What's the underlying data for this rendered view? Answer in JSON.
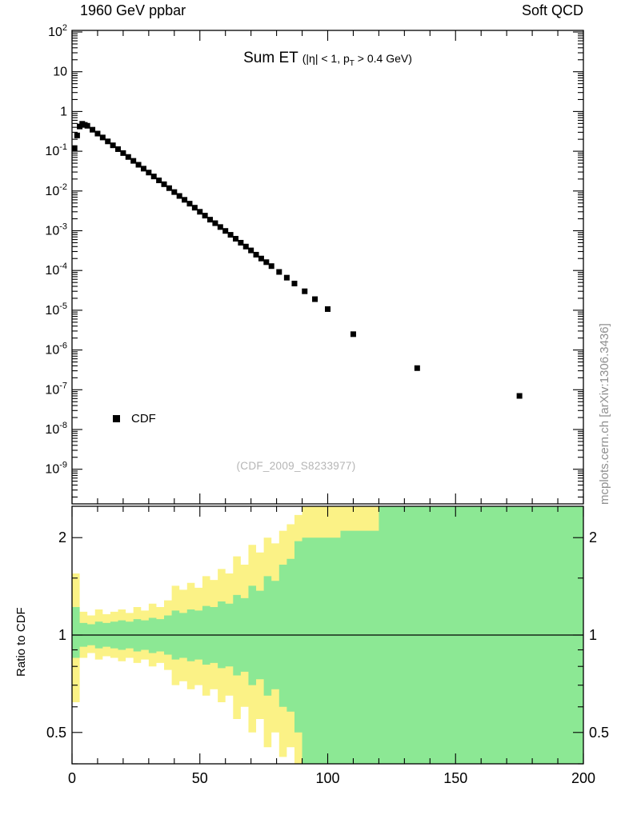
{
  "header": {
    "left_label": "1960 GeV ppbar",
    "right_label": "Soft QCD"
  },
  "plot_title": {
    "main": "Sum ET",
    "cond_pre": "(|η| < 1, p",
    "cond_sub": "T",
    "cond_post": " > 0.4 GeV)"
  },
  "legend": {
    "label": "CDF",
    "marker": "filled-square",
    "marker_color": "#000000"
  },
  "ref_label": "(CDF_2009_S8233977)",
  "side_watermark": "mcplots.cern.ch [arXiv:1306.3436]",
  "ratio": {
    "ylabel": "Ratio to CDF"
  },
  "colors": {
    "band_yellow": "#fbf286",
    "band_green": "#8ce894",
    "marker": "#000000",
    "axis": "#000000",
    "ref_gray": "#b5b5b5",
    "watermark_gray": "#8f8f8f"
  },
  "chart_data": [
    {
      "type": "scatter",
      "title": "Sum ET (|η| < 1, pT > 0.4 GeV)",
      "xlabel": "",
      "ylabel": "",
      "x_range": [
        0,
        200
      ],
      "y_scale": "log",
      "y_range_exp": [
        -9.87,
        2.04
      ],
      "y_tick_exponents": [
        2,
        1,
        0,
        -1,
        -2,
        -3,
        -4,
        -5,
        -6,
        -7,
        -8,
        -9
      ],
      "x_major_ticks": [
        0,
        50,
        100,
        150,
        200
      ],
      "x_minor_step": 10,
      "grid": false,
      "legend_position": "lower-left",
      "series": [
        {
          "name": "CDF",
          "marker": "square",
          "color": "#000000",
          "points": [
            [
              1,
              0.12
            ],
            [
              2,
              0.25
            ],
            [
              3,
              0.42
            ],
            [
              4,
              0.49
            ],
            [
              5,
              0.46
            ],
            [
              6,
              0.437
            ],
            [
              8,
              0.348
            ],
            [
              10,
              0.278
            ],
            [
              12,
              0.222
            ],
            [
              14,
              0.177
            ],
            [
              16,
              0.141
            ],
            [
              18,
              0.113
            ],
            [
              20,
              0.09
            ],
            [
              22,
              0.0718
            ],
            [
              24,
              0.0573
            ],
            [
              26,
              0.0457
            ],
            [
              28,
              0.0365
            ],
            [
              30,
              0.0291
            ],
            [
              32,
              0.0232
            ],
            [
              34,
              0.0185
            ],
            [
              36,
              0.0148
            ],
            [
              38,
              0.0118
            ],
            [
              40,
              0.0094
            ],
            [
              42,
              0.0075
            ],
            [
              44,
              0.006
            ],
            [
              46,
              0.0048
            ],
            [
              48,
              0.0038
            ],
            [
              50,
              0.003
            ],
            [
              52,
              0.0024
            ],
            [
              54,
              0.0019
            ],
            [
              56,
              0.00155
            ],
            [
              58,
              0.00124
            ],
            [
              60,
              0.00099
            ],
            [
              62,
              0.00079
            ],
            [
              64,
              0.00063
            ],
            [
              66,
              0.0005
            ],
            [
              68,
              0.0004
            ],
            [
              70,
              0.00032
            ],
            [
              72,
              0.00025
            ],
            [
              74,
              0.0002
            ],
            [
              76,
              0.000162
            ],
            [
              78,
              0.000129
            ],
            [
              81,
              9.2e-05
            ],
            [
              84,
              6.6e-05
            ],
            [
              87,
              4.7e-05
            ],
            [
              91,
              3e-05
            ],
            [
              95,
              1.9e-05
            ],
            [
              100,
              1.07e-05
            ],
            [
              110,
              2.5e-06
            ],
            [
              135,
              3.5e-07
            ],
            [
              175,
              7e-08
            ]
          ]
        }
      ]
    },
    {
      "type": "band-ratio",
      "ylabel": "Ratio to CDF",
      "y_scale": "log",
      "y_range": [
        0.4,
        2.5
      ],
      "y_major_ticks": [
        0.5,
        1,
        2
      ],
      "y_minor_ticks": [
        0.4,
        0.6,
        0.7,
        0.8,
        0.9,
        1.5
      ],
      "reference_line": 1,
      "x_end": 200,
      "bands": [
        {
          "name": "yellow-band",
          "color": "#fbf286",
          "segments": [
            [
              0,
              0.62,
              1.55
            ],
            [
              3,
              0.85,
              1.18
            ],
            [
              6,
              0.88,
              1.15
            ],
            [
              9,
              0.84,
              1.2
            ],
            [
              12,
              0.86,
              1.16
            ],
            [
              15,
              0.85,
              1.18
            ],
            [
              18,
              0.83,
              1.2
            ],
            [
              21,
              0.85,
              1.17
            ],
            [
              24,
              0.82,
              1.22
            ],
            [
              27,
              0.84,
              1.19
            ],
            [
              30,
              0.8,
              1.25
            ],
            [
              33,
              0.82,
              1.22
            ],
            [
              36,
              0.78,
              1.28
            ],
            [
              39,
              0.7,
              1.42
            ],
            [
              42,
              0.72,
              1.38
            ],
            [
              45,
              0.68,
              1.45
            ],
            [
              48,
              0.7,
              1.4
            ],
            [
              51,
              0.65,
              1.52
            ],
            [
              54,
              0.68,
              1.48
            ],
            [
              57,
              0.62,
              1.6
            ],
            [
              60,
              0.65,
              1.55
            ],
            [
              63,
              0.55,
              1.75
            ],
            [
              66,
              0.6,
              1.65
            ],
            [
              69,
              0.5,
              1.9
            ],
            [
              72,
              0.55,
              1.8
            ],
            [
              75,
              0.45,
              2.0
            ],
            [
              78,
              0.5,
              1.92
            ],
            [
              81,
              0.42,
              2.1
            ],
            [
              84,
              0.45,
              2.2
            ],
            [
              87,
              0.4,
              2.35
            ],
            [
              90,
              0.4,
              2.5
            ]
          ]
        },
        {
          "name": "green-band",
          "color": "#8ce894",
          "segments": [
            [
              0,
              0.85,
              1.22
            ],
            [
              3,
              0.92,
              1.09
            ],
            [
              6,
              0.93,
              1.08
            ],
            [
              9,
              0.91,
              1.1
            ],
            [
              12,
              0.92,
              1.09
            ],
            [
              15,
              0.91,
              1.1
            ],
            [
              18,
              0.9,
              1.11
            ],
            [
              21,
              0.91,
              1.1
            ],
            [
              24,
              0.89,
              1.12
            ],
            [
              27,
              0.9,
              1.11
            ],
            [
              30,
              0.88,
              1.13
            ],
            [
              33,
              0.89,
              1.12
            ],
            [
              36,
              0.87,
              1.15
            ],
            [
              39,
              0.84,
              1.19
            ],
            [
              42,
              0.85,
              1.17
            ],
            [
              45,
              0.83,
              1.2
            ],
            [
              48,
              0.84,
              1.19
            ],
            [
              51,
              0.81,
              1.23
            ],
            [
              54,
              0.82,
              1.22
            ],
            [
              57,
              0.79,
              1.27
            ],
            [
              60,
              0.8,
              1.25
            ],
            [
              63,
              0.75,
              1.33
            ],
            [
              66,
              0.77,
              1.3
            ],
            [
              69,
              0.7,
              1.42
            ],
            [
              72,
              0.73,
              1.37
            ],
            [
              75,
              0.65,
              1.52
            ],
            [
              78,
              0.68,
              1.47
            ],
            [
              81,
              0.6,
              1.65
            ],
            [
              84,
              0.58,
              1.72
            ],
            [
              87,
              0.5,
              1.95
            ],
            [
              90,
              0.4,
              2.0
            ],
            [
              105,
              0.4,
              2.1
            ],
            [
              120,
              0.4,
              2.5
            ]
          ]
        }
      ]
    }
  ]
}
